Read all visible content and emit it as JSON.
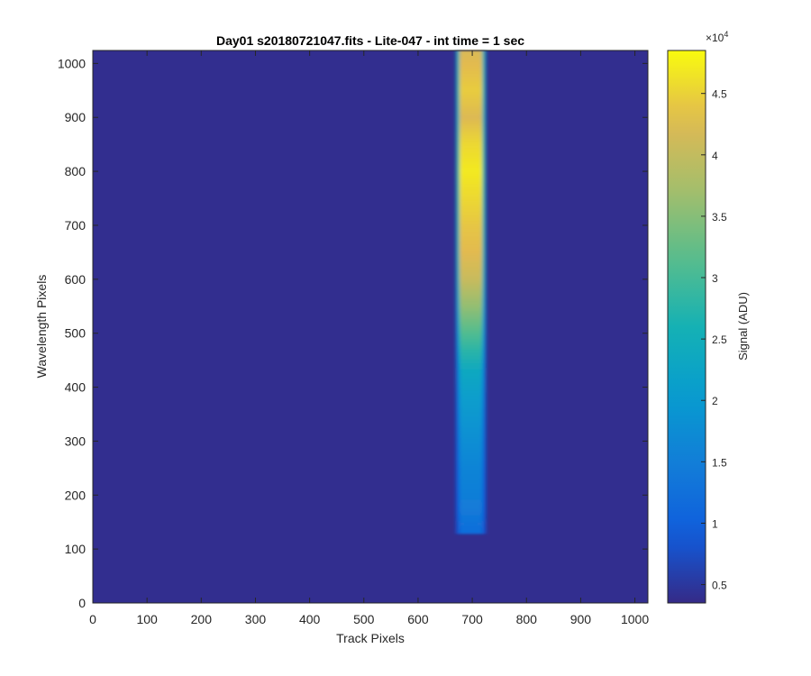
{
  "chart_data": {
    "type": "heatmap",
    "title": "Day01  s20180721047.fits - Lite-047 - int time = 1 sec",
    "xlabel": "Track Pixels",
    "ylabel": "Wavelength Pixels",
    "xlim": [
      0,
      1024
    ],
    "ylim": [
      0,
      1024
    ],
    "x_ticks": [
      "0",
      "100",
      "200",
      "300",
      "400",
      "500",
      "600",
      "700",
      "800",
      "900",
      "1000"
    ],
    "y_ticks": [
      "0",
      "100",
      "200",
      "300",
      "400",
      "500",
      "600",
      "700",
      "800",
      "900",
      "1000"
    ],
    "colorbar": {
      "label": "Signal (ADU)",
      "exponent_base": "×10",
      "exponent_power": "4",
      "range": [
        0.35,
        4.85
      ],
      "ticks": [
        "0.5",
        "1",
        "1.5",
        "2",
        "2.5",
        "3",
        "3.5",
        "4",
        "4.5"
      ],
      "colormap": "parula"
    },
    "background_value": 0.4,
    "stripe": {
      "x_range": [
        670,
        725
      ],
      "y_range": [
        128,
        1024
      ],
      "profile_y": [
        128,
        180,
        250,
        320,
        380,
        430,
        470,
        500,
        550,
        600,
        650,
        700,
        750,
        800,
        850,
        900,
        950,
        1000,
        1024
      ],
      "profile_values": [
        1.2,
        1.45,
        1.6,
        1.85,
        2.1,
        2.35,
        2.8,
        3.1,
        3.6,
        4.05,
        4.3,
        4.4,
        4.55,
        4.7,
        4.55,
        4.25,
        4.45,
        4.3,
        4.2
      ]
    }
  }
}
